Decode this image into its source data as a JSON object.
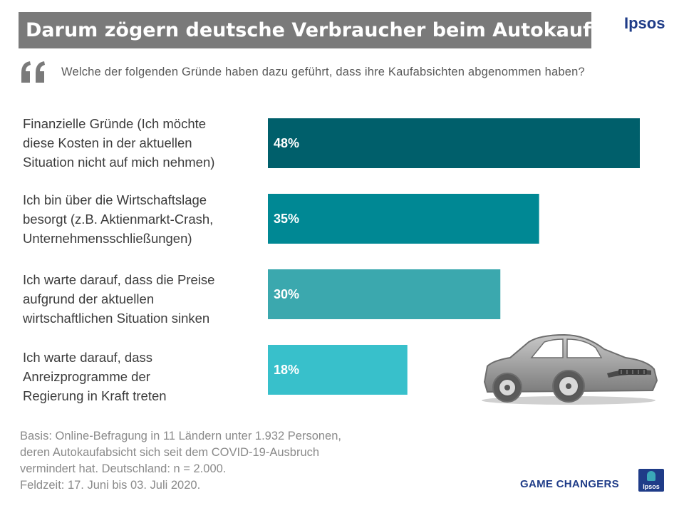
{
  "header": {
    "title": "Darum zögern deutsche Verbraucher beim Autokauf",
    "brand": "Ipsos"
  },
  "question": "Welche der folgenden Gründe haben dazu geführt, dass ihre Kaufabsichten abgenommen haben?",
  "chart_data": {
    "type": "bar",
    "orientation": "horizontal",
    "title": "Darum zögern deutsche Verbraucher beim Autokauf",
    "xlabel": "",
    "ylabel": "",
    "xlim": [
      0,
      50
    ],
    "grid": false,
    "categories": [
      [
        "Finanzielle Gründe (Ich möchte",
        "diese Kosten in der aktuellen",
        "Situation nicht auf mich nehmen)"
      ],
      [
        "Ich bin über die Wirtschaftslage",
        "besorgt (z.B. Aktienmarkt-Crash,",
        "Unternehmensschließungen)"
      ],
      [
        "Ich warte darauf, dass die Preise",
        "aufgrund der aktuellen",
        "wirtschaftlichen Situation sinken"
      ],
      [
        "Ich warte darauf, dass",
        "Anreizprogramme der",
        "Regierung in Kraft treten"
      ]
    ],
    "values": [
      48,
      35,
      30,
      18
    ],
    "value_labels": [
      "48%",
      "35%",
      "30%",
      "18%"
    ],
    "colors": [
      "#005f6b",
      "#008894",
      "#3ba8ae",
      "#38c0cb"
    ]
  },
  "footnote": {
    "lines": [
      "Basis: Online-Befragung  in 11 Ländern unter 1.932 Personen,",
      "deren Autokaufabsicht sich seit dem COVID-19-Ausbruch",
      "vermindert  hat. Deutschland:  n = 2.000.",
      "Feldzeit: 17. Juni bis 03. Juli 2020."
    ]
  },
  "footer": {
    "tagline": "GAME CHANGERS",
    "logo_text": "Ipsos"
  },
  "icons": {
    "quote": "quote-icon",
    "car": "car-icon"
  }
}
